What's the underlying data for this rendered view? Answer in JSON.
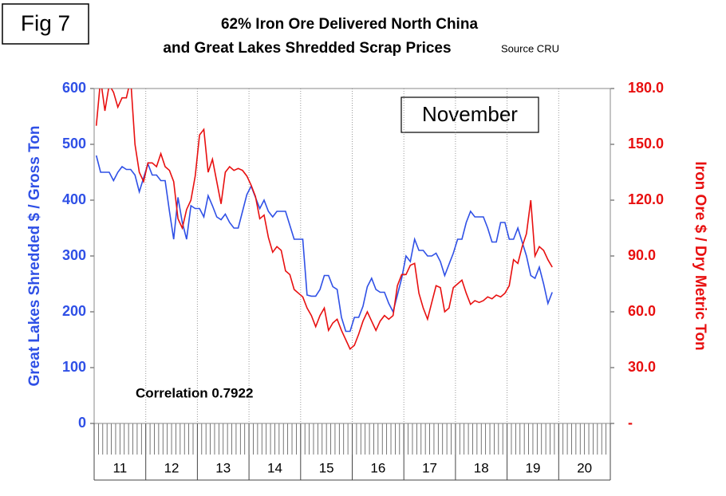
{
  "fig_label": "Fig 7",
  "chart_data": {
    "type": "line",
    "title": "62% Iron Ore Delivered North China",
    "title_line2": "and Great Lakes Shredded Scrap Prices",
    "subtitle": "Source CRU",
    "annotation": "November",
    "correlation": "Correlation 0.7922",
    "ylabel": "Great Lakes Shredded $ / Gross Ton",
    "y2label": "Iron Ore $ / Dry Metric Ton",
    "grid": true,
    "categories": [
      null,
      null,
      null,
      null,
      null,
      "11",
      null,
      null,
      null,
      null,
      null,
      null,
      null,
      null,
      null,
      null,
      null,
      "12",
      null,
      null,
      null,
      null,
      null,
      null,
      null,
      null,
      null,
      null,
      null,
      "13",
      null,
      null,
      null,
      null,
      null,
      null,
      null,
      null,
      null,
      null,
      null,
      "14",
      null,
      null,
      null,
      null,
      null,
      null,
      null,
      null,
      null,
      null,
      null,
      "15",
      null,
      null,
      null,
      null,
      null,
      null,
      null,
      null,
      null,
      null,
      null,
      "16",
      null,
      null,
      null,
      null,
      null,
      null,
      null,
      null,
      null,
      null,
      null,
      "17",
      null,
      null,
      null,
      null,
      null,
      null,
      null,
      null,
      null,
      null,
      null,
      "18",
      null,
      null,
      null,
      null,
      null,
      null,
      null,
      null,
      null,
      null,
      null,
      "19",
      null,
      null,
      null,
      null,
      null,
      null,
      null,
      null,
      null,
      null,
      null,
      "20",
      null,
      null,
      null,
      null,
      null,
      null
    ],
    "ylim": [
      0,
      600
    ],
    "yticks": [
      0,
      100,
      200,
      300,
      400,
      500,
      600
    ],
    "y2lim": [
      0,
      180
    ],
    "y2ticks": [
      {
        "value": 0,
        "label": "-"
      },
      {
        "value": 30,
        "label": "30.0"
      },
      {
        "value": 60,
        "label": "60.0"
      },
      {
        "value": 90,
        "label": "90.0"
      },
      {
        "value": 120,
        "label": "120.0"
      },
      {
        "value": 150,
        "label": "150.0"
      },
      {
        "value": 180,
        "label": "180.0"
      }
    ],
    "series": [
      {
        "name": "Great Lakes Shredded Scrap",
        "color": "#2f50e6",
        "axis": "y",
        "values": [
          480,
          450,
          450,
          450,
          435,
          450,
          460,
          455,
          455,
          445,
          415,
          440,
          465,
          445,
          445,
          435,
          435,
          380,
          330,
          405,
          360,
          330,
          390,
          385,
          385,
          370,
          408,
          390,
          370,
          365,
          375,
          360,
          350,
          350,
          380,
          410,
          425,
          405,
          385,
          400,
          380,
          370,
          380,
          380,
          380,
          355,
          330,
          330,
          330,
          230,
          228,
          228,
          240,
          265,
          265,
          245,
          240,
          190,
          165,
          165,
          190,
          190,
          210,
          245,
          260,
          240,
          235,
          235,
          215,
          200,
          230,
          260,
          300,
          290,
          330,
          310,
          310,
          300,
          300,
          305,
          290,
          265,
          285,
          305,
          330,
          330,
          360,
          380,
          370,
          370,
          370,
          350,
          325,
          325,
          360,
          360,
          330,
          330,
          350,
          325,
          300,
          265,
          260,
          280,
          250,
          215,
          235,
          null,
          null,
          null,
          null,
          null,
          null,
          null,
          null,
          null,
          null,
          null,
          null,
          null
        ]
      },
      {
        "name": "62% Iron Ore",
        "color": "#e81010",
        "axis": "y2",
        "values": [
          160,
          185,
          168,
          182,
          178,
          170,
          175,
          175,
          185,
          150,
          135,
          130,
          140,
          140,
          138,
          145,
          138,
          136,
          130,
          110,
          105,
          115,
          120,
          133,
          155,
          158,
          135,
          142,
          130,
          118,
          135,
          138,
          136,
          137,
          136,
          133,
          128,
          122,
          110,
          112,
          100,
          92,
          95,
          93,
          82,
          80,
          72,
          70,
          68,
          62,
          58,
          52,
          58,
          62,
          50,
          54,
          56,
          50,
          45,
          40,
          42,
          48,
          55,
          60,
          55,
          50,
          55,
          58,
          56,
          58,
          74,
          80,
          80,
          85,
          86,
          70,
          62,
          56,
          65,
          74,
          73,
          60,
          62,
          73,
          75,
          77,
          70,
          64,
          66,
          65,
          66,
          68,
          67,
          69,
          68,
          70,
          74,
          88,
          86,
          95,
          102,
          120,
          90,
          95,
          93,
          88,
          84,
          null,
          null,
          null,
          null,
          null,
          null,
          null,
          null,
          null,
          null,
          null,
          null,
          null
        ]
      }
    ]
  }
}
